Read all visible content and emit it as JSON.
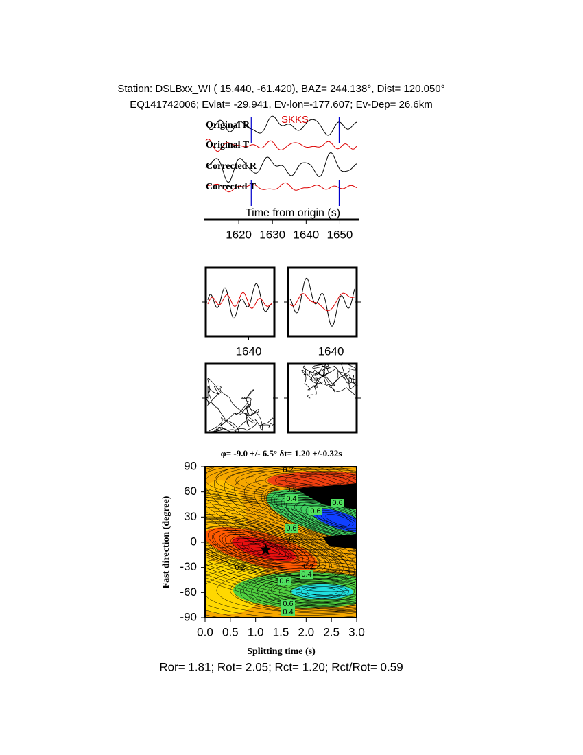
{
  "header": {
    "station_line": "Station: DSLBxx_WI (  15.440,  -61.420), BAZ=  244.138°, Dist=  120.050°",
    "event_line": "EQ141742006; Evlat= -29.941, Ev-lon=-177.607; Ev-Dep= 26.6km"
  },
  "chart_data": [
    {
      "type": "waveform",
      "phase": "SKKS",
      "traces": [
        "Original R",
        "Original T",
        "Corrected R",
        "Corrected T"
      ],
      "xlabel": "Time from origin (s)",
      "xlim": [
        1610,
        1655
      ],
      "xticks": [
        1620,
        1630,
        1640,
        1650
      ],
      "window": [
        1623.7,
        1649.8
      ]
    },
    {
      "type": "window",
      "xlim": [
        1630,
        1646
      ],
      "xticks": [
        1640
      ]
    },
    {
      "type": "window",
      "xlim": [
        1630,
        1646
      ],
      "xticks": [
        1640
      ]
    },
    {
      "type": "contour",
      "title": "φ= -9.0 +/- 6.5° δt= 1.20 +/-0.32s",
      "xlabel": "Splitting time (s)",
      "ylabel": "Fast direction (degree)",
      "xlim": [
        0,
        3
      ],
      "ylim": [
        -90,
        90
      ],
      "xticks": [
        {
          "value": 0,
          "label": "0.0"
        },
        {
          "value": 0.5,
          "label": "0.5"
        },
        {
          "value": 1,
          "label": "1.0"
        },
        {
          "value": 1.5,
          "label": "1.5"
        },
        {
          "value": 2,
          "label": "2.0"
        },
        {
          "value": 2.5,
          "label": "2.5"
        },
        {
          "value": 3,
          "label": "3.0"
        }
      ],
      "yticks": [
        -90,
        -60,
        -30,
        0,
        30,
        60,
        90
      ],
      "best": {
        "dt": 1.2,
        "phi": -9.0
      },
      "contour_labels": [
        0.2,
        0.2,
        0.4,
        0.6,
        0.6,
        0.6,
        0.2,
        0.2,
        0.2,
        0.4,
        0.6,
        0.6,
        0.4
      ]
    }
  ],
  "footer": "Ror= 1.81; Rot= 2.05; Rct= 1.20; Rct/Rot= 0.59"
}
